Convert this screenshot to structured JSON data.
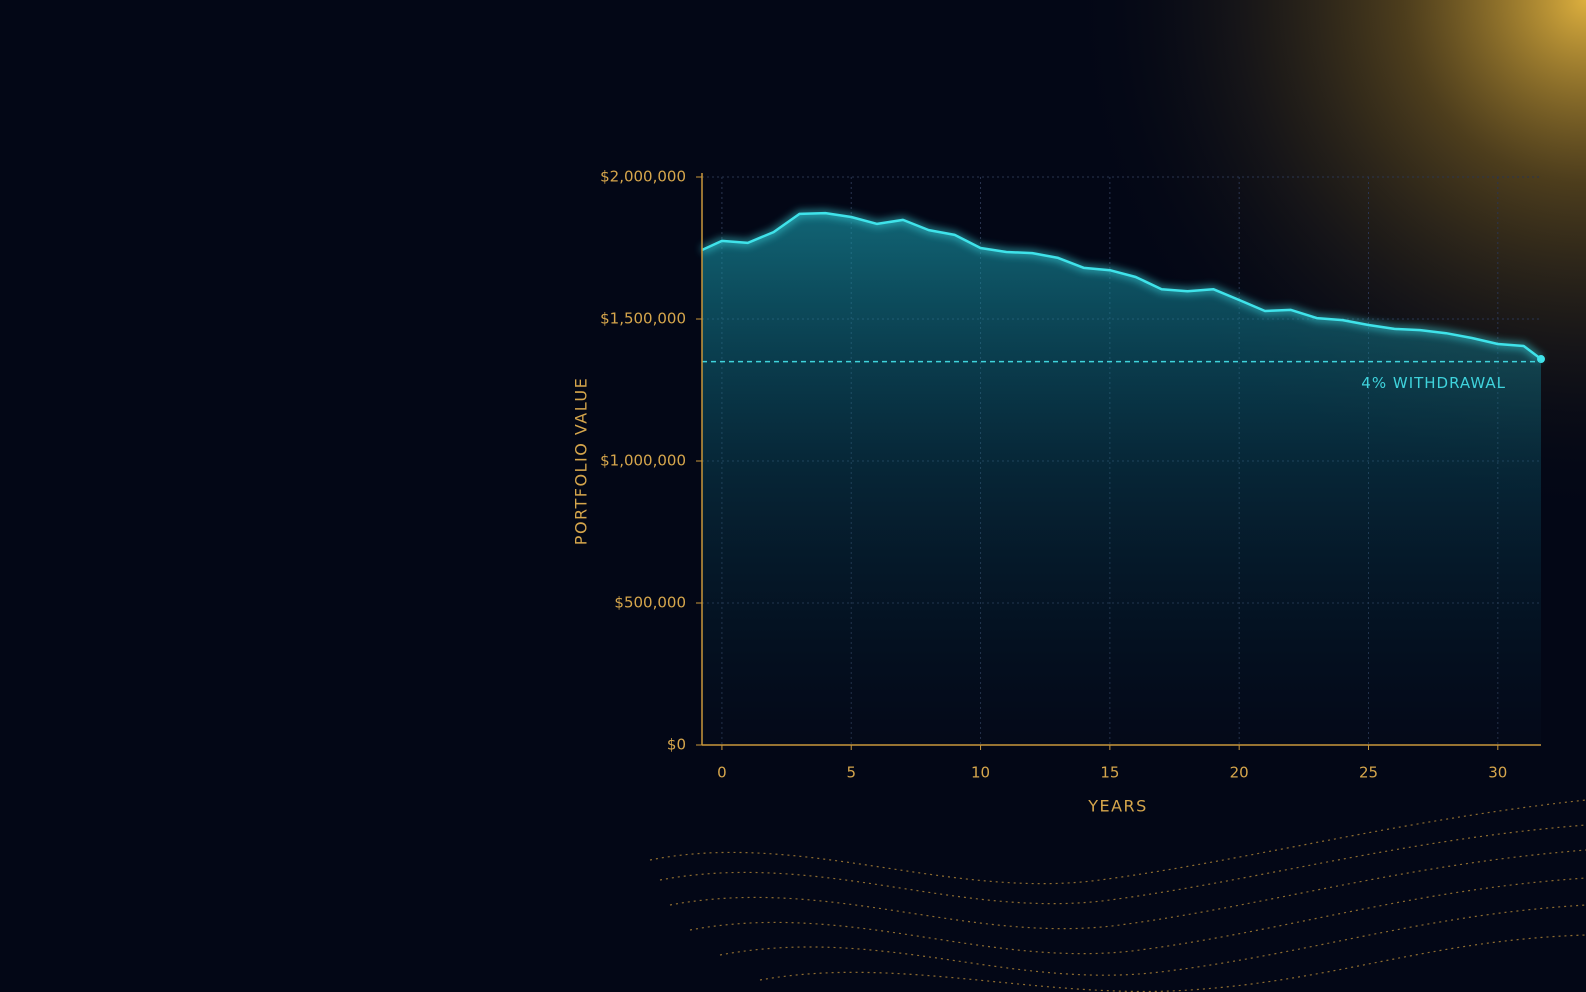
{
  "chart_data": {
    "type": "line",
    "x_label": "YEARS",
    "y_label": "PORTFOLIO VALUE",
    "x": [
      -0.77,
      0,
      1,
      2,
      3,
      4,
      5,
      6,
      7,
      8,
      9,
      10,
      11,
      12,
      13,
      14,
      15,
      16,
      17,
      18,
      19,
      20,
      21,
      22,
      23,
      24,
      25,
      26,
      27,
      28,
      29,
      30,
      31,
      31.67
    ],
    "series": [
      {
        "name": "Portfolio value",
        "color": "#3fe3ea",
        "values": [
          1743000,
          1775000,
          1768000,
          1806000,
          1870000,
          1873000,
          1859000,
          1835000,
          1849000,
          1813000,
          1796000,
          1750000,
          1736000,
          1732000,
          1715000,
          1680000,
          1672000,
          1648000,
          1605000,
          1598000,
          1605000,
          1567000,
          1528000,
          1532000,
          1503000,
          1496000,
          1479000,
          1465000,
          1461000,
          1450000,
          1433000,
          1412000,
          1405000,
          1359000
        ]
      }
    ],
    "hline": {
      "value": 1350000,
      "label": "4% WITHDRAWAL",
      "color": "#3fd3dc"
    },
    "xlim": [
      -0.77,
      31.67
    ],
    "xticks": [
      0,
      5,
      10,
      15,
      20,
      25,
      30
    ],
    "ylim": [
      0,
      2000000
    ],
    "yticks": [
      {
        "value": 0,
        "label": "$0"
      },
      {
        "value": 500000,
        "label": "$500,000"
      },
      {
        "value": 1000000,
        "label": "$1,000,000"
      },
      {
        "value": 1500000,
        "label": "$1,500,000"
      },
      {
        "value": 2000000,
        "label": "$2,000,000"
      }
    ],
    "grid": true,
    "axis_color": "#c9973b"
  }
}
